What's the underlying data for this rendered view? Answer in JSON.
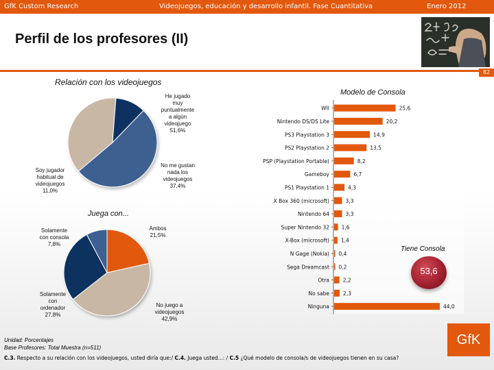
{
  "header": {
    "left": "GfK Custom Research",
    "center": "Videojuegos, educación y desarrollo infantil. Fase Cuantitativa",
    "right": "Enero 2012"
  },
  "title": "Perfil de los profesores (II)",
  "page_number": "82",
  "colors": {
    "accent": "#e2580d",
    "bar": "#e2580d",
    "pie_blue": "#3e6090",
    "pie_tan": "#c9b7a6",
    "pie_navy": "#10325f",
    "badge": "#a3202f"
  },
  "left_section": {
    "title": "Relación con los videojuegos",
    "pie1_labels": {
      "played": [
        "He jugado",
        "muy",
        "puntualmente",
        "a algún",
        "videojuego",
        "51,6%"
      ],
      "dislike": [
        "No me gustan",
        "nada los",
        "videojuegos",
        "37,4%"
      ],
      "habitual": [
        "Soy jugador",
        "habitual de",
        "videojuegos",
        "11,0%"
      ]
    },
    "juega_title": "Juega con...",
    "pie2_labels": {
      "console": [
        "Solamente",
        "con consola",
        "7,8%"
      ],
      "both": [
        "Ambos",
        "21,5%"
      ],
      "computer": [
        "Solamente",
        "con",
        "ordenador",
        "27,8%"
      ],
      "none": [
        "No juego a",
        "videojuegos",
        "42,9%"
      ]
    }
  },
  "right_section": {
    "title": "Modelo de Consola",
    "tiene_label": "Tiene Consola",
    "tiene_value": "53,6"
  },
  "chart_data": [
    {
      "type": "pie",
      "title": "Relación con los videojuegos",
      "categories": [
        "He jugado muy puntualmente a algún videojuego",
        "No me gustan nada los videojuegos",
        "Soy jugador habitual de videojuegos"
      ],
      "values": [
        51.6,
        37.4,
        11.0
      ]
    },
    {
      "type": "pie",
      "title": "Juega con...",
      "categories": [
        "Ambos",
        "No juego a videojuegos",
        "Solamente con ordenador",
        "Solamente con consola"
      ],
      "values": [
        21.5,
        42.9,
        27.8,
        7.8
      ]
    },
    {
      "type": "bar",
      "orientation": "horizontal",
      "title": "Modelo de Consola",
      "categories": [
        "WII",
        "Nintendo DS/DS Lite",
        "PS3 Playstation 3",
        "PS2 Playstation 2",
        "PSP (Playstation Portable)",
        "Gameboy",
        "PS1 Playstation 1",
        "X Box 360 (microsoft)",
        "Nintendo 64",
        "Super Nintendo 32",
        "X-Box (microsoft)",
        "N Gage (Nokia)",
        "Sega Dreamcast",
        "Otra",
        "No sabe",
        "Ninguna"
      ],
      "values": [
        25.6,
        20.2,
        14.9,
        13.5,
        8.2,
        6.7,
        4.3,
        3.3,
        3.3,
        1.6,
        1.4,
        0.4,
        0.2,
        2.2,
        2.3,
        44.0
      ],
      "value_labels": [
        "25,6",
        "20,2",
        "14,9",
        "13,5",
        "8,2",
        "6,7",
        "4,3",
        "3,3",
        "3,3",
        "1,6",
        "1,4",
        "0,4",
        "0,2",
        "2,2",
        "2,3",
        "44,0"
      ],
      "xlim": [
        0,
        44
      ]
    }
  ],
  "footer": {
    "unit": "Unidad: Porcentajes",
    "base": "Base Profesores: Total Muestra (n=511)",
    "questions": [
      {
        "code": "C.3.",
        "text": " Respecto a su relación con los videojuegos, usted diría que:/ "
      },
      {
        "code": "C.4.",
        "text": " Juega usted...: / "
      },
      {
        "code": "C.5",
        "text": " ¿Qué modelo de consola/s de videojuegos tienen en su casa?"
      }
    ]
  },
  "logo": "GfK"
}
